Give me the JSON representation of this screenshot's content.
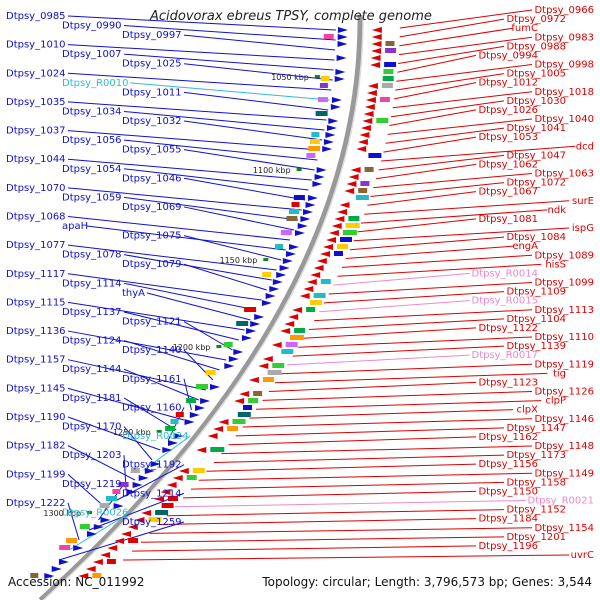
{
  "title": "Acidovorax ebreus TPSY, complete genome",
  "footer": {
    "accession": "Accession: NC_011992",
    "topology": "Topology: circular; Length: 3,796,573 bp; Genes: 3,544"
  },
  "colors": {
    "plus_strand": "#1010cc",
    "minus_strand": "#dd0000",
    "rna": "#33bbcc",
    "minus_rna": "#ee88cc",
    "backbone": "#999999",
    "tick": "#118811"
  },
  "scale_labels": [
    "1050 kbp",
    "1100 kbp",
    "1150 kbp",
    "1200 kbp",
    "1250 kbp",
    "1300 kbp"
  ],
  "left_labels": [
    "Dtpsy_0985",
    "Dtpsy_0990",
    "Dtpsy_0997",
    "Dtpsy_1010",
    "Dtpsy_1007",
    "Dtpsy_1025",
    "Dtpsy_1024",
    "Dtpsy_R0010",
    "Dtpsy_1011",
    "Dtpsy_1035",
    "Dtpsy_1034",
    "Dtpsy_1032",
    "Dtpsy_1037",
    "Dtpsy_1056",
    "Dtpsy_1055",
    "Dtpsy_1044",
    "Dtpsy_1054",
    "Dtpsy_1046",
    "Dtpsy_1070",
    "Dtpsy_1059",
    "Dtpsy_1069",
    "Dtpsy_1068",
    "apaH",
    "Dtpsy_1075",
    "Dtpsy_1077",
    "Dtpsy_1078",
    "Dtpsy_1079",
    "Dtpsy_1117",
    "Dtpsy_1114",
    "thyA",
    "Dtpsy_1115",
    "Dtpsy_1137",
    "Dtpsy_1121",
    "Dtpsy_1136",
    "Dtpsy_1124",
    "Dtpsy_1140",
    "Dtpsy_1157",
    "Dtpsy_1144",
    "Dtpsy_1161",
    "Dtpsy_1145",
    "Dtpsy_1181",
    "Dtpsy_1160",
    "Dtpsy_1190",
    "Dtpsy_1170",
    "Dtpsy_R0024",
    "Dtpsy_1182",
    "Dtpsy_1203",
    "Dtpsy_1192",
    "Dtpsy_1199",
    "Dtpsy_1219",
    "Dtpsy_1214",
    "Dtpsy_1222",
    "Dtpsy_R0026",
    "Dtpsy_1259"
  ],
  "right_labels": [
    "Dtpsy_0966",
    "Dtpsy_0972",
    "fumC",
    "Dtpsy_0983",
    "Dtpsy_0988",
    "Dtpsy_0994",
    "Dtpsy_0998",
    "Dtpsy_1005",
    "Dtpsy_1012",
    "Dtpsy_1018",
    "Dtpsy_1030",
    "Dtpsy_1026",
    "Dtpsy_1040",
    "Dtpsy_1041",
    "Dtpsy_1053",
    "dcd",
    "Dtpsy_1047",
    "Dtpsy_1062",
    "Dtpsy_1063",
    "Dtpsy_1072",
    "Dtpsy_1067",
    "surE",
    "ndk",
    "Dtpsy_1081",
    "ispG",
    "Dtpsy_1084",
    "engA",
    "Dtpsy_1089",
    "hisS",
    "Dtpsy_R0014",
    "Dtpsy_1099",
    "Dtpsy_1109",
    "Dtpsy_R0015",
    "Dtpsy_1113",
    "Dtpsy_1104",
    "Dtpsy_1122",
    "Dtpsy_1110",
    "Dtpsy_1139",
    "Dtpsy_R0017",
    "Dtpsy_1119",
    "tig",
    "Dtpsy_1123",
    "Dtpsy_1126",
    "clpP",
    "clpX",
    "Dtpsy_1146",
    "Dtpsy_1147",
    "Dtpsy_1162",
    "Dtpsy_1148",
    "Dtpsy_1173",
    "Dtpsy_1156",
    "Dtpsy_1149",
    "Dtpsy_1158",
    "Dtpsy_1150",
    "Dtpsy_R0021",
    "Dtpsy_1152",
    "Dtpsy_1184",
    "Dtpsy_1154",
    "Dtpsy_1201",
    "Dtpsy_1196",
    "uvrC"
  ]
}
